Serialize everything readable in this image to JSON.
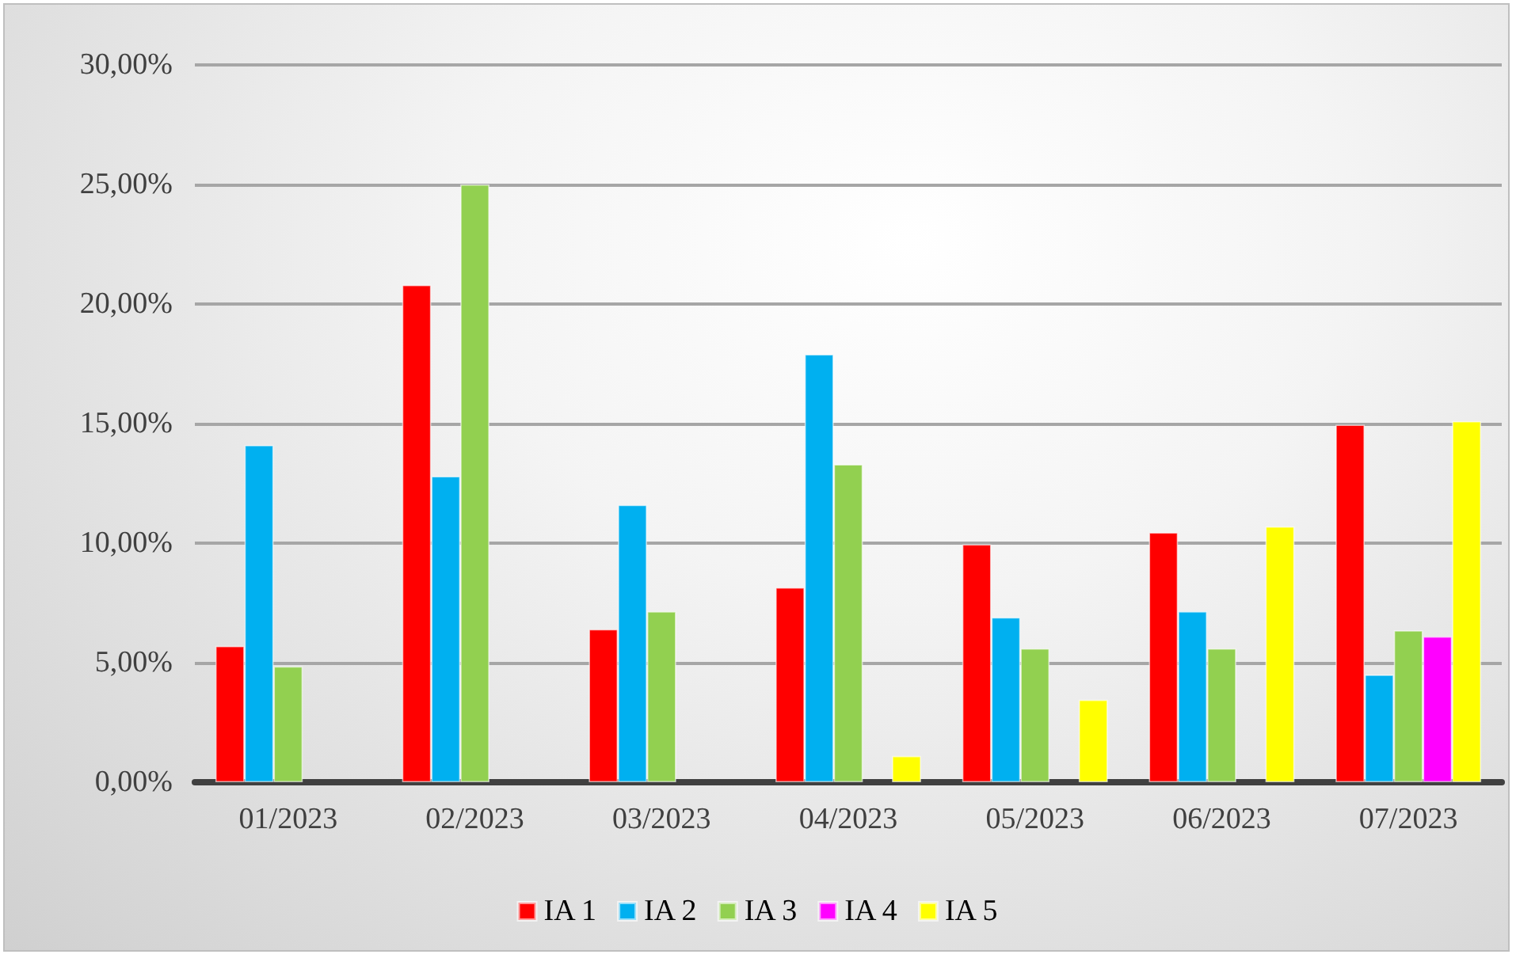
{
  "chart_data": {
    "type": "bar",
    "categories": [
      "01/2023",
      "02/2023",
      "03/2023",
      "04/2023",
      "05/2023",
      "06/2023",
      "07/2023"
    ],
    "series": [
      {
        "name": "IA 1",
        "color": "#ff0000",
        "values": [
          5.7,
          20.8,
          6.4,
          8.15,
          9.95,
          10.45,
          14.95
        ]
      },
      {
        "name": "IA 2",
        "color": "#00b0f0",
        "values": [
          14.1,
          12.8,
          11.6,
          17.9,
          6.9,
          7.15,
          4.5
        ]
      },
      {
        "name": "IA 3",
        "color": "#92d050",
        "values": [
          4.85,
          25.0,
          7.15,
          13.3,
          5.6,
          5.6,
          6.35
        ]
      },
      {
        "name": "IA 4",
        "color": "#ff00ff",
        "values": [
          null,
          null,
          null,
          null,
          null,
          null,
          6.1
        ]
      },
      {
        "name": "IA 5",
        "color": "#ffff00",
        "values": [
          null,
          null,
          null,
          1.1,
          3.45,
          10.7,
          15.1
        ]
      }
    ],
    "ylim": [
      0,
      30
    ],
    "yticks": [
      {
        "value": 0,
        "label": "0,00%"
      },
      {
        "value": 5,
        "label": "5,00%"
      },
      {
        "value": 10,
        "label": "10,00%"
      },
      {
        "value": 15,
        "label": "15,00%"
      },
      {
        "value": 20,
        "label": "20,00%"
      },
      {
        "value": 25,
        "label": "25,00%"
      },
      {
        "value": 30,
        "label": "30,00%"
      }
    ],
    "grid": "y",
    "legend": "bottom"
  }
}
